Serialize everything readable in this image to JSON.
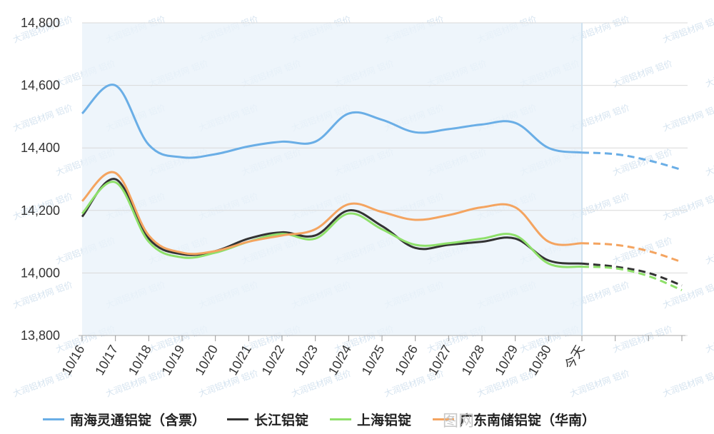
{
  "chart_data": {
    "type": "line",
    "categories": [
      "10/16",
      "10/17",
      "10/18",
      "10/19",
      "10/20",
      "10/21",
      "10/22",
      "10/23",
      "10/24",
      "10/25",
      "10/26",
      "10/27",
      "10/28",
      "10/29",
      "10/30",
      "今天",
      "",
      "",
      ""
    ],
    "ylim": [
      13800,
      14800
    ],
    "yticks": [
      "13,800",
      "14,000",
      "14,200",
      "14,400",
      "14,600",
      "14,800"
    ],
    "ytick_values": [
      13800,
      14000,
      14200,
      14400,
      14600,
      14800
    ],
    "today_index": 15,
    "highlight_range": [
      0,
      15
    ],
    "grid": true,
    "legend_position": "bottom",
    "series": [
      {
        "name": "南海灵通铝锭（含票）",
        "color": "#6aaee6",
        "values": [
          14510,
          14600,
          14410,
          14370,
          14380,
          14405,
          14420,
          14420,
          14510,
          14490,
          14450,
          14460,
          14475,
          14480,
          14400,
          14385,
          14380,
          14360,
          14330
        ]
      },
      {
        "name": "长江铝锭",
        "color": "#333333",
        "values": [
          14180,
          14300,
          14110,
          14060,
          14070,
          14110,
          14130,
          14120,
          14200,
          14150,
          14080,
          14090,
          14100,
          14110,
          14040,
          14030,
          14020,
          14000,
          13960
        ]
      },
      {
        "name": "上海铝锭",
        "color": "#8ee06a",
        "values": [
          14190,
          14290,
          14100,
          14050,
          14065,
          14100,
          14125,
          14110,
          14190,
          14140,
          14090,
          14095,
          14110,
          14120,
          14030,
          14020,
          14015,
          13990,
          13945
        ]
      },
      {
        "name": "广东南储铝锭（华南）",
        "color": "#f4a460",
        "values": [
          14230,
          14320,
          14120,
          14065,
          14070,
          14100,
          14120,
          14140,
          14220,
          14195,
          14170,
          14185,
          14210,
          14210,
          14100,
          14095,
          14090,
          14070,
          14035
        ]
      }
    ]
  },
  "watermark": "大润铝材网 铝价",
  "footer_watermark": "图网"
}
